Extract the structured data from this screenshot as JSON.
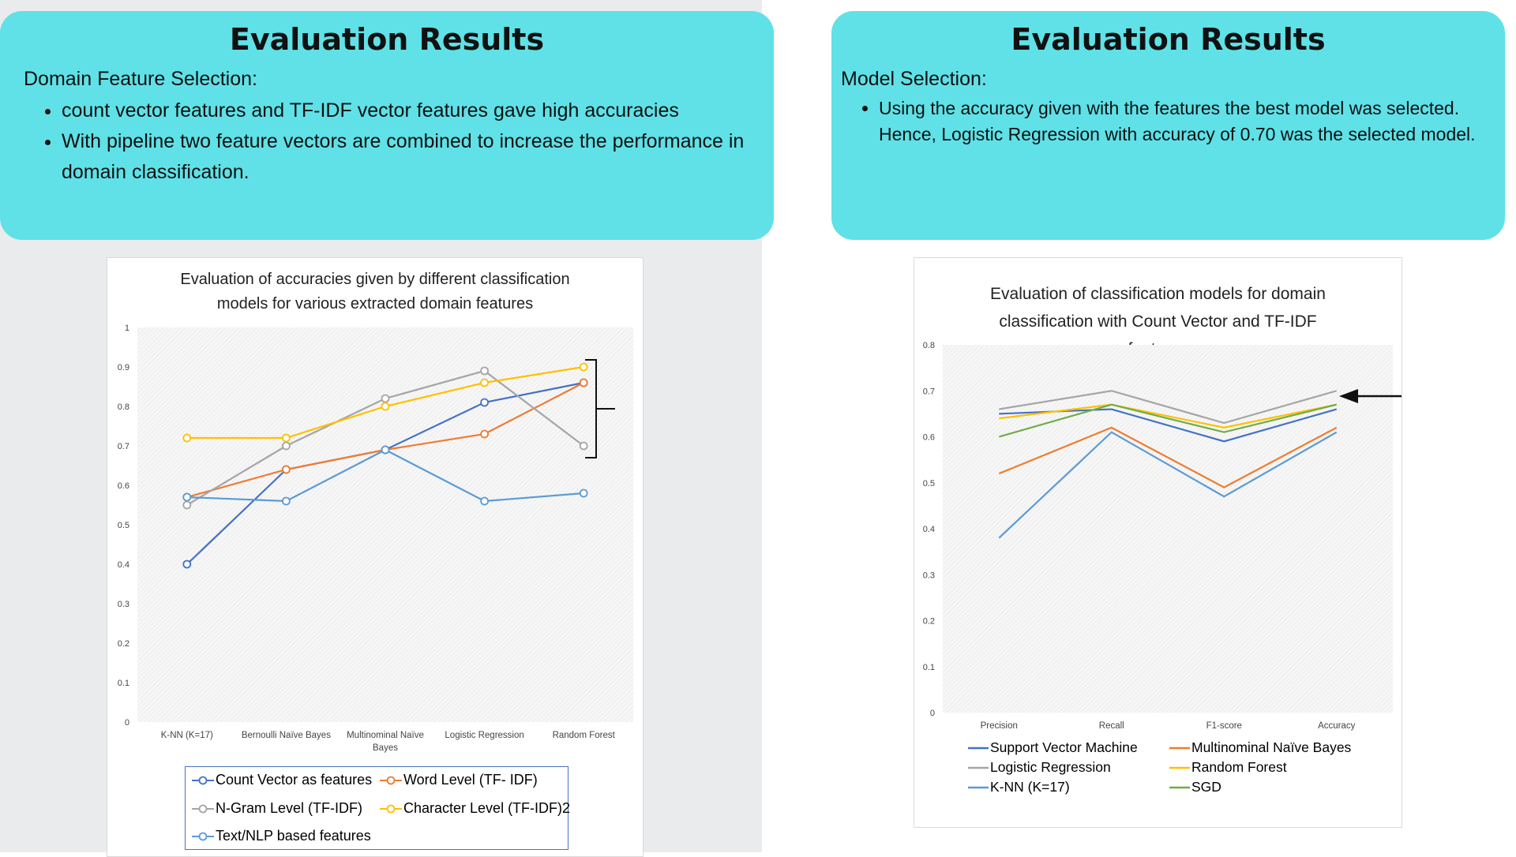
{
  "left_card": {
    "title": "Evaluation Results",
    "subtitle": "Domain Feature Selection:",
    "bullets": [
      "count vector features and TF-IDF vector features gave high accuracies",
      "With pipeline two feature vectors are combined to increase the performance in domain classification."
    ]
  },
  "right_card": {
    "title": "Evaluation Results",
    "subtitle": "Model Selection:",
    "bullets": [
      "Using the accuracy given with the features the best model was selected. Hence, Logistic Regression with accuracy of 0.70 was the selected model."
    ]
  },
  "colors": {
    "card": "#5fe1e7"
  },
  "chart_data": [
    {
      "type": "line",
      "title": "Evaluation of accuracies given by different classification models for various extracted domain features",
      "categories": [
        "K-NN (K=17)",
        "Bernoulli Naïve Bayes",
        "Multinominal Naïve Bayes",
        "Logistic Regression",
        "Random Forest"
      ],
      "ylim": [
        0,
        1
      ],
      "yticks": [
        "0",
        "0.1",
        "0.2",
        "0.3",
        "0.4",
        "0.5",
        "0.6",
        "0.7",
        "0.8",
        "0.9",
        "1"
      ],
      "grid": true,
      "legend_position": "bottom",
      "series": [
        {
          "name": "Count Vector as features",
          "color": "#4472c4",
          "values": [
            0.4,
            0.64,
            0.69,
            0.81,
            0.86
          ]
        },
        {
          "name": "Word Level (TF- IDF)",
          "color": "#ed7d31",
          "values": [
            0.57,
            0.64,
            0.69,
            0.73,
            0.86
          ]
        },
        {
          "name": "N-Gram Level (TF-IDF)",
          "color": "#a5a5a5",
          "values": [
            0.55,
            0.7,
            0.82,
            0.89,
            0.7
          ]
        },
        {
          "name": "Character Level (TF-IDF)2",
          "color": "#ffc000",
          "values": [
            0.72,
            0.72,
            0.8,
            0.86,
            0.9
          ]
        },
        {
          "name": "Text/NLP based features",
          "color": "#5b9bd5",
          "values": [
            0.57,
            0.56,
            0.69,
            0.56,
            0.58
          ]
        }
      ]
    },
    {
      "type": "line",
      "title": "Evaluation of classification models for domain classification with Count Vector and TF-IDF features",
      "categories": [
        "Precision",
        "Recall",
        "F1-score",
        "Accuracy"
      ],
      "ylim": [
        0,
        0.8
      ],
      "yticks": [
        "0",
        "0.1",
        "0.2",
        "0.3",
        "0.4",
        "0.5",
        "0.6",
        "0.7",
        "0.8"
      ],
      "grid": true,
      "legend_position": "bottom",
      "series": [
        {
          "name": "Support Vector Machine",
          "color": "#4472c4",
          "values": [
            0.65,
            0.66,
            0.59,
            0.66
          ]
        },
        {
          "name": "Multinominal Naïve Bayes",
          "color": "#ed7d31",
          "values": [
            0.52,
            0.62,
            0.49,
            0.62
          ]
        },
        {
          "name": "Logistic Regression",
          "color": "#a5a5a5",
          "values": [
            0.66,
            0.7,
            0.63,
            0.7
          ]
        },
        {
          "name": "Random Forest",
          "color": "#ffc000",
          "values": [
            0.64,
            0.67,
            0.62,
            0.67
          ]
        },
        {
          "name": "K-NN (K=17)",
          "color": "#5b9bd5",
          "values": [
            0.38,
            0.61,
            0.47,
            0.61
          ]
        },
        {
          "name": "SGD",
          "color": "#70ad47",
          "values": [
            0.6,
            0.67,
            0.61,
            0.67
          ]
        }
      ]
    }
  ]
}
